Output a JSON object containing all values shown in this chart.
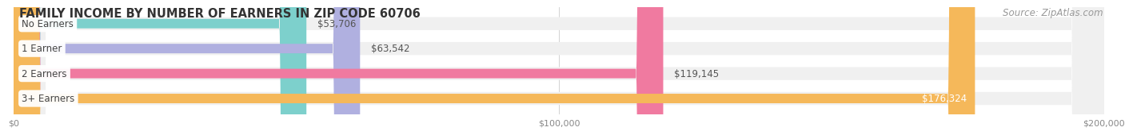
{
  "title": "FAMILY INCOME BY NUMBER OF EARNERS IN ZIP CODE 60706",
  "source": "Source: ZipAtlas.com",
  "categories": [
    "No Earners",
    "1 Earner",
    "2 Earners",
    "3+ Earners"
  ],
  "values": [
    53706,
    63542,
    119145,
    176324
  ],
  "labels": [
    "$53,706",
    "$63,542",
    "$119,145",
    "$176,324"
  ],
  "bar_colors": [
    "#7dd0cc",
    "#b0b0e0",
    "#f07aa0",
    "#f5b85a"
  ],
  "bar_bg_color": "#f0f0f0",
  "xlim": [
    0,
    200000
  ],
  "xtick_labels": [
    "$0",
    "$100,000",
    "$200,000"
  ],
  "title_fontsize": 10.5,
  "source_fontsize": 8.5,
  "label_fontsize": 8.5,
  "category_fontsize": 8.5,
  "fig_width": 14.06,
  "fig_height": 2.33,
  "background_color": "#ffffff"
}
